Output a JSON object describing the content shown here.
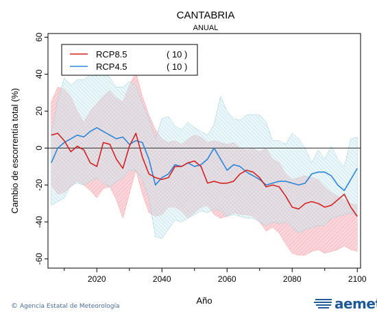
{
  "chart_data": {
    "type": "line",
    "title": "CANTABRIA",
    "subtitle": "ANUAL",
    "xlabel": "Año",
    "ylabel": "Cambio de escorrentía total (%)",
    "xlim": [
      2005,
      2101
    ],
    "ylim": [
      -65,
      62
    ],
    "xticks": [
      2020,
      2040,
      2060,
      2080,
      2100
    ],
    "yticks": [
      60,
      40,
      20,
      0,
      -20,
      -40,
      -60
    ],
    "zero_line": true,
    "grid": false,
    "legend_position": "top-left",
    "series": [
      {
        "name": "RCP8.5",
        "count_label": "( 10 )",
        "color": "#d42020",
        "band_color": "#f7b8c0",
        "x": [
          2006,
          2008,
          2010,
          2012,
          2014,
          2016,
          2018,
          2020,
          2022,
          2024,
          2026,
          2028,
          2030,
          2032,
          2034,
          2036,
          2038,
          2040,
          2042,
          2044,
          2046,
          2048,
          2050,
          2052,
          2054,
          2056,
          2058,
          2060,
          2062,
          2064,
          2066,
          2068,
          2070,
          2072,
          2074,
          2076,
          2078,
          2080,
          2082,
          2084,
          2086,
          2088,
          2090,
          2092,
          2094,
          2096,
          2098,
          2100
        ],
        "values": [
          7,
          8,
          4,
          -2,
          1,
          -1,
          -8,
          -10,
          3,
          2,
          -6,
          -11,
          1,
          8,
          -5,
          -14,
          -16,
          -17,
          -16,
          -10,
          -10,
          -8,
          -7,
          -10,
          -19,
          -18,
          -19,
          -19,
          -18,
          -14,
          -12,
          -13,
          -16,
          -21,
          -20,
          -21,
          -26,
          -32,
          -33,
          -30,
          -29,
          -30,
          -32,
          -31,
          -28,
          -25,
          -32,
          -37
        ],
        "upper": [
          25,
          33,
          32,
          28,
          20,
          14,
          20,
          24,
          28,
          31,
          27,
          25,
          34,
          41,
          28,
          18,
          10,
          5,
          3,
          4,
          2,
          5,
          7,
          6,
          3,
          4,
          3,
          2,
          3,
          0,
          -1,
          0,
          -2,
          0,
          -6,
          -8,
          -14,
          -17,
          -16,
          -15,
          -16,
          -17,
          -21,
          -24,
          -26,
          -28,
          -30,
          -31
        ],
        "lower": [
          -20,
          -25,
          -24,
          -21,
          -18,
          -20,
          -23,
          -27,
          -22,
          -21,
          -28,
          -38,
          -25,
          -12,
          -25,
          -35,
          -37,
          -36,
          -32,
          -32,
          -34,
          -38,
          -35,
          -32,
          -31,
          -36,
          -38,
          -37,
          -35,
          -36,
          -36,
          -37,
          -40,
          -45,
          -43,
          -46,
          -52,
          -57,
          -58,
          -58,
          -56,
          -55,
          -57,
          -56,
          -55,
          -53,
          -55,
          -56
        ]
      },
      {
        "name": "RCP4.5",
        "count_label": "( 10 )",
        "color": "#2a84d8",
        "band_color": "#b2dde6",
        "x": [
          2006,
          2008,
          2010,
          2012,
          2014,
          2016,
          2018,
          2020,
          2022,
          2024,
          2026,
          2028,
          2030,
          2032,
          2034,
          2036,
          2038,
          2040,
          2042,
          2044,
          2046,
          2048,
          2050,
          2052,
          2054,
          2056,
          2058,
          2060,
          2062,
          2064,
          2066,
          2068,
          2070,
          2072,
          2074,
          2076,
          2078,
          2080,
          2082,
          2084,
          2086,
          2088,
          2090,
          2092,
          2094,
          2096,
          2098,
          2100
        ],
        "values": [
          -8,
          0,
          3,
          5,
          7,
          6,
          9,
          11,
          9,
          7,
          5,
          6,
          2,
          4,
          3,
          -6,
          -20,
          -16,
          -14,
          -9,
          -10,
          -8,
          -10,
          -9,
          -6,
          0,
          -6,
          -12,
          -9,
          -10,
          -13,
          -15,
          -17,
          -20,
          -19,
          -18,
          -18,
          -19,
          -20,
          -19,
          -14,
          -13,
          -13,
          -15,
          -20,
          -23,
          -17,
          -11
        ],
        "upper": [
          8,
          26,
          38,
          34,
          37,
          37,
          40,
          39,
          42,
          38,
          33,
          33,
          36,
          34,
          24,
          16,
          5,
          16,
          17,
          12,
          10,
          14,
          11,
          9,
          7,
          13,
          28,
          20,
          16,
          15,
          18,
          18,
          18,
          14,
          4,
          4,
          2,
          8,
          5,
          0,
          -8,
          -1,
          -6,
          1,
          -6,
          -10,
          5,
          6
        ],
        "lower": [
          -31,
          -29,
          -27,
          -20,
          -19,
          -20,
          -18,
          -16,
          -19,
          -21,
          -18,
          -16,
          -12,
          -12,
          -17,
          -27,
          -48,
          -49,
          -44,
          -39,
          -40,
          -38,
          -36,
          -34,
          -35,
          -33,
          -34,
          -37,
          -36,
          -37,
          -38,
          -38,
          -40,
          -42,
          -40,
          -41,
          -40,
          -43,
          -46,
          -44,
          -43,
          -42,
          -42,
          -38,
          -37,
          -36,
          -35,
          -37
        ]
      }
    ]
  },
  "footer": {
    "credit": "Agencia Estatal de Meteorología",
    "credit_symbol": "©",
    "logo_text": "aemet"
  }
}
